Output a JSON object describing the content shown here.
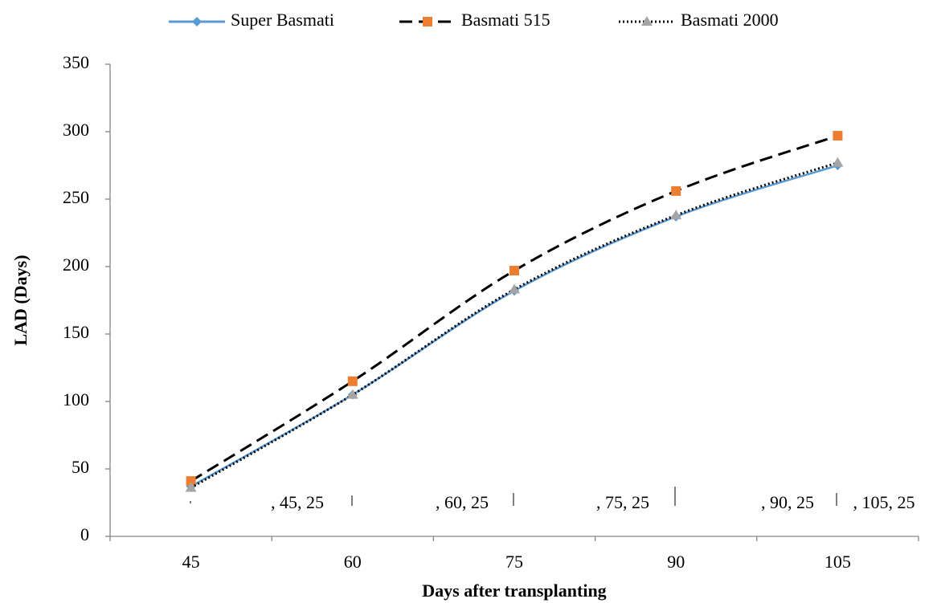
{
  "chart_data": {
    "type": "line",
    "x_label": "Days after transplanting",
    "y_label": "LAD (Days)",
    "categories": [
      45,
      60,
      75,
      90,
      105
    ],
    "series": [
      {
        "name": "Super Basmati",
        "color": "#5b9bd5",
        "line_style": "solid",
        "marker": "diamond",
        "values": [
          37,
          105,
          182,
          237,
          275
        ]
      },
      {
        "name": "Basmati 515",
        "color": "#ed7d31",
        "line_color": "#000000",
        "line_style": "dashed",
        "marker": "square",
        "values": [
          41,
          115,
          197,
          256,
          297
        ]
      },
      {
        "name": "Basmati 2000",
        "color": "#a5a5a5",
        "line_color": "#000000",
        "line_style": "dotted",
        "marker": "triangle",
        "values": [
          36,
          105,
          183,
          238,
          277
        ]
      }
    ],
    "annotations": [
      ", 45, 25",
      ", 60, 25",
      ", 75, 25",
      ", 90, 25",
      ", 105, 25"
    ],
    "ylim": [
      0,
      350
    ],
    "yticks": [
      0,
      50,
      100,
      150,
      200,
      250,
      300,
      350
    ],
    "grid": false,
    "legend": "top",
    "smooth": true
  }
}
